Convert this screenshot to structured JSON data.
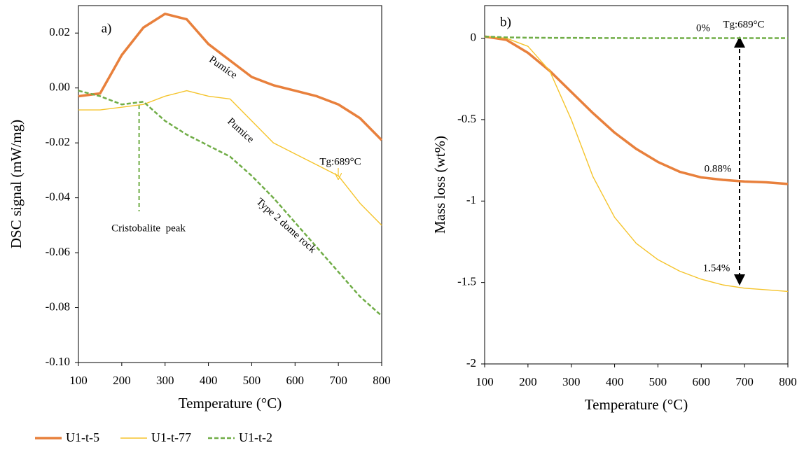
{
  "chart_data": [
    {
      "type": "line",
      "xlabel": "Temperature (°C)",
      "ylabel": "DSC signal (mW/mg)",
      "x": [
        100,
        150,
        200,
        250,
        300,
        350,
        400,
        450,
        500,
        550,
        600,
        650,
        700,
        750,
        800
      ],
      "series": [
        {
          "name": "U1-t-5",
          "color": "#e8803c",
          "values": [
            -0.003,
            -0.002,
            0.012,
            0.022,
            0.027,
            0.025,
            0.016,
            0.01,
            0.004,
            0.001,
            -0.001,
            -0.003,
            -0.006,
            -0.011,
            -0.019
          ]
        },
        {
          "name": "U1-t-77",
          "color": "#f5c42c",
          "values": [
            -0.008,
            -0.008,
            -0.007,
            -0.006,
            -0.003,
            -0.001,
            -0.003,
            -0.004,
            -0.012,
            -0.02,
            -0.024,
            -0.028,
            -0.032,
            -0.042,
            -0.05
          ]
        },
        {
          "name": "U1-t-2",
          "color": "#70ad47",
          "dash": true,
          "values": [
            -0.001,
            -0.003,
            -0.006,
            -0.005,
            -0.012,
            -0.017,
            -0.021,
            -0.025,
            -0.032,
            -0.04,
            -0.049,
            -0.058,
            -0.067,
            -0.076,
            -0.083
          ]
        }
      ],
      "xlim": [
        100,
        800
      ],
      "xticks": [
        100,
        200,
        300,
        400,
        500,
        600,
        700,
        800
      ],
      "ylim": [
        -0.1,
        0.03
      ],
      "yticks": [
        0.02,
        {
          "value": 0,
          "label": "0.00"
        },
        -0.02,
        -0.04,
        -0.06,
        -0.08,
        {
          "value": -0.1,
          "label": "-0.10"
        }
      ],
      "annotations": [
        {
          "text": "a)",
          "color": "#000000"
        },
        {
          "text": "Pumice",
          "color": "#e8803c"
        },
        {
          "text": "Pumice",
          "color": "#f5c42c"
        },
        {
          "text": "Tg:689°C",
          "color": "#000000"
        },
        {
          "text": "Type 2 dome rock",
          "color": "#70ad47"
        },
        {
          "text": "Cristobalite  peak",
          "color": "#000000"
        }
      ]
    },
    {
      "type": "line",
      "xlabel": "Temperature (°C)",
      "ylabel": "Mass loss (wt%)",
      "x": [
        100,
        150,
        200,
        250,
        300,
        350,
        400,
        450,
        500,
        550,
        600,
        650,
        700,
        750,
        800
      ],
      "series": [
        {
          "color": "#e8803c",
          "values": [
            0.01,
            -0.01,
            -0.09,
            -0.2,
            -0.33,
            -0.46,
            -0.58,
            -0.68,
            -0.76,
            -0.82,
            -0.855,
            -0.87,
            -0.88,
            -0.885,
            -0.895
          ]
        },
        {
          "color": "#f5c42c",
          "values": [
            0.01,
            0.0,
            -0.05,
            -0.2,
            -0.5,
            -0.85,
            -1.1,
            -1.26,
            -1.36,
            -1.43,
            -1.48,
            -1.515,
            -1.535,
            -1.545,
            -1.555
          ]
        },
        {
          "color": "#70ad47",
          "dash": true,
          "values": [
            0.01,
            0.005,
            0.003,
            0.002,
            0.002,
            0.001,
            0.001,
            0.0,
            0.0,
            0.0,
            0.0,
            0.0,
            0.0,
            0.0,
            0.0
          ]
        }
      ],
      "xlim": [
        100,
        800
      ],
      "xticks": [
        100,
        200,
        300,
        400,
        500,
        600,
        700,
        800
      ],
      "ylim": [
        -2,
        0.2
      ],
      "yticks": [
        0,
        -0.5,
        -1,
        -1.5,
        -2
      ],
      "annotations": [
        {
          "text": "b)",
          "color": "#000000"
        },
        {
          "text": "0%",
          "color": "#70ad47"
        },
        {
          "text": "Tg:689°C",
          "color": "#000000"
        },
        {
          "text": "0.88%",
          "color": "#e8803c"
        },
        {
          "text": "1.54%",
          "color": "#f5c42c"
        }
      ]
    }
  ]
}
